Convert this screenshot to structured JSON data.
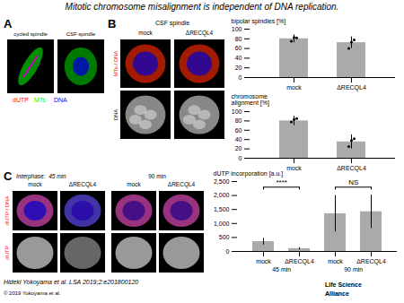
{
  "title": "Mitotic chromosome misalignment is independent of DNA replication.",
  "annotations": [
    {
      "text": "A"
    },
    {
      "text": "cycled spindle"
    },
    {
      "text": "CSF spindle"
    },
    {
      "text": "dUTP",
      "color": "#ff0000"
    },
    {
      "text": "MTs",
      "color": "#00ff00"
    },
    {
      "text": "DNA",
      "color": "#0000ff"
    },
    {
      "text": "B"
    },
    {
      "text": "CSF spindle"
    },
    {
      "text": "mock"
    },
    {
      "text": "ΔRECQL4"
    },
    {
      "text": "MTs / DNA",
      "color": "#ff0000"
    },
    {
      "text": "DNA"
    },
    {
      "text": "C"
    },
    {
      "text": "Interphase:  45 min"
    },
    {
      "text": "90 min"
    },
    {
      "text": "mock"
    },
    {
      "text": "ΔRECQL4"
    },
    {
      "text": "mock"
    },
    {
      "text": "ΔRECQL4"
    },
    {
      "text": "dUTP / DNA",
      "color": "#ff0000"
    },
    {
      "text": "dUTP",
      "color": "#ff0000"
    },
    {
      "text": "Hideki Yokoyama et al. LSA 2019;2:e201800120"
    },
    {
      "text": "© 2019 Yokoyama et al."
    },
    {
      "text": "Life Science"
    },
    {
      "text": "Alliance"
    }
  ],
  "chart_data": [
    {
      "type": "bar",
      "categories": [
        "mock",
        "ΔRECQL4"
      ],
      "values": [
        80,
        72
      ],
      "errors": [
        8,
        12
      ],
      "points": [
        [
          75,
          83,
          82
        ],
        [
          60,
          73,
          78
        ]
      ],
      "ylabel": "bipolar spindles [%]",
      "ylim": [
        0,
        100
      ],
      "yticks": [
        0,
        20,
        40,
        60,
        80,
        100
      ],
      "color": "#aaaaaa"
    },
    {
      "type": "bar",
      "categories": [
        "mock",
        "ΔRECQL4"
      ],
      "values": [
        80,
        35
      ],
      "errors": [
        10,
        15
      ],
      "points": [
        [
          78,
          83,
          85
        ],
        [
          25,
          38,
          42
        ]
      ],
      "ylabel": "chromosome\nalignment [%]",
      "ylim": [
        0,
        100
      ],
      "yticks": [
        0,
        20,
        40,
        60,
        80,
        100
      ],
      "color": "#aaaaaa"
    },
    {
      "type": "bar",
      "categories": [
        "mock",
        "ΔRECQL4",
        "mock",
        "ΔRECQL4"
      ],
      "values": [
        350,
        100,
        1350,
        1420
      ],
      "errors": [
        120,
        40,
        650,
        600
      ],
      "ylabel": "dUTP incorporation [a.u.]",
      "ylim": [
        0,
        2500
      ],
      "yticks": [
        0,
        500,
        1000,
        1500,
        2000,
        2500
      ],
      "color": "#aaaaaa",
      "annotations": [
        {
          "text": "****",
          "group": "45 min"
        },
        {
          "text": "NS",
          "group": "90 min"
        }
      ]
    }
  ]
}
